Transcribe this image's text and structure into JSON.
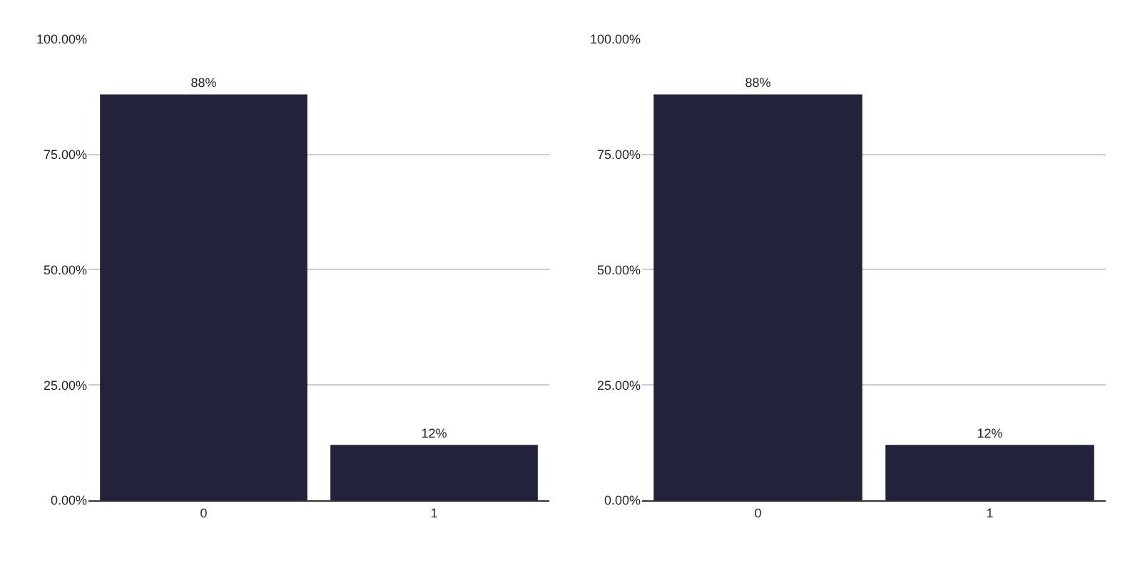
{
  "chart_data": [
    {
      "type": "bar",
      "categories": [
        "0",
        "1"
      ],
      "values": [
        88,
        12
      ],
      "value_labels": [
        "88%",
        "12%"
      ],
      "color": "#22223b",
      "ylim": [
        0,
        100
      ],
      "yticks": [
        {
          "value": 0,
          "label": "0.00%"
        },
        {
          "value": 25,
          "label": "25.00%"
        },
        {
          "value": 50,
          "label": "50.00%"
        },
        {
          "value": 75,
          "label": "75.00%"
        },
        {
          "value": 100,
          "label": "100.00%"
        }
      ],
      "grid": "y"
    },
    {
      "type": "bar",
      "categories": [
        "0",
        "1"
      ],
      "values": [
        88,
        12
      ],
      "value_labels": [
        "88%",
        "12%"
      ],
      "color": "#22223b",
      "ylim": [
        0,
        100
      ],
      "yticks": [
        {
          "value": 0,
          "label": "0.00%"
        },
        {
          "value": 25,
          "label": "25.00%"
        },
        {
          "value": 50,
          "label": "50.00%"
        },
        {
          "value": 75,
          "label": "75.00%"
        },
        {
          "value": 100,
          "label": "100.00%"
        }
      ],
      "grid": "y"
    }
  ]
}
